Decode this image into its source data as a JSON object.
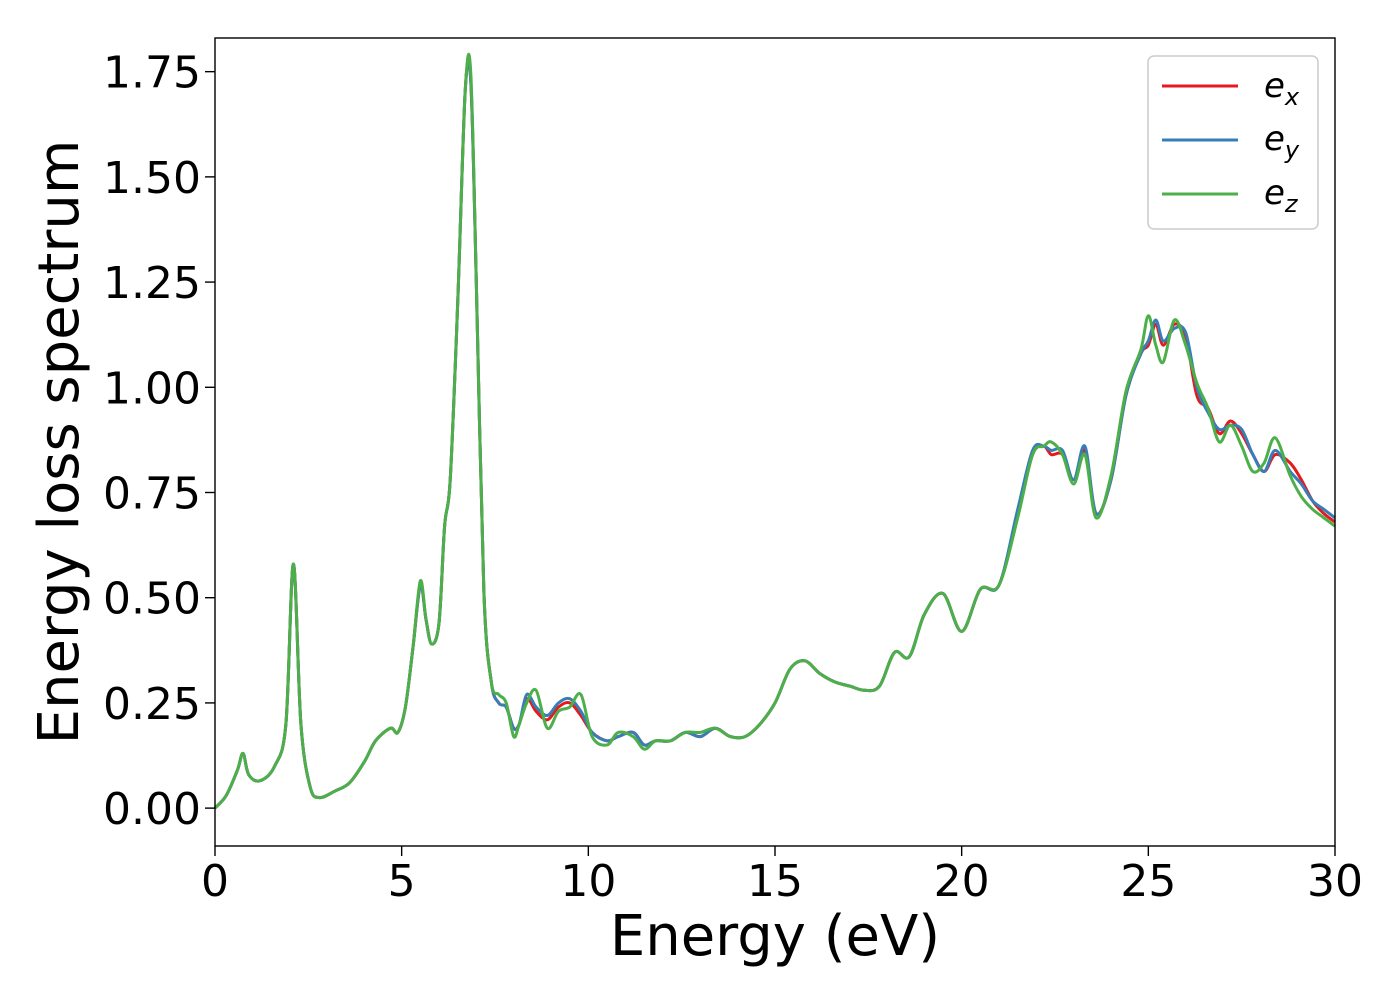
{
  "chart_data": {
    "type": "line",
    "xlabel": "Energy (eV)",
    "ylabel": "Energy loss spectrum",
    "xlim": [
      0,
      30
    ],
    "ylim": [
      -0.09,
      1.83
    ],
    "xticks": [
      0,
      5,
      10,
      15,
      20,
      25,
      30
    ],
    "xtick_labels": [
      "0",
      "5",
      "10",
      "15",
      "20",
      "25",
      "30"
    ],
    "yticks": [
      0.0,
      0.25,
      0.5,
      0.75,
      1.0,
      1.25,
      1.5,
      1.75
    ],
    "ytick_labels": [
      "0.00",
      "0.25",
      "0.50",
      "0.75",
      "1.00",
      "1.25",
      "1.50",
      "1.75"
    ],
    "grid": false,
    "legend_position": "top-right",
    "series": [
      {
        "name": "e_x",
        "legend_base": "e",
        "legend_sub": "x",
        "color": "#e41a1c",
        "x": [
          0,
          0.3,
          0.6,
          0.75,
          0.9,
          1.2,
          1.6,
          1.9,
          2.1,
          2.3,
          2.55,
          2.8,
          3.2,
          3.6,
          4.0,
          4.3,
          4.7,
          4.9,
          5.1,
          5.3,
          5.5,
          5.65,
          5.8,
          6.0,
          6.15,
          6.3,
          6.5,
          6.7,
          6.85,
          7.0,
          7.2,
          7.4,
          7.6,
          7.8,
          8.0,
          8.15,
          8.35,
          8.6,
          8.9,
          9.2,
          9.5,
          9.8,
          10.1,
          10.5,
          10.8,
          11.2,
          11.5,
          11.8,
          12.2,
          12.6,
          13.0,
          13.4,
          13.8,
          14.2,
          14.6,
          15.0,
          15.4,
          15.8,
          16.2,
          16.6,
          17.0,
          17.4,
          17.8,
          18.2,
          18.6,
          19.0,
          19.5,
          20.0,
          20.5,
          21.0,
          21.5,
          21.9,
          22.2,
          22.4,
          22.7,
          23.0,
          23.3,
          23.6,
          24.0,
          24.4,
          24.8,
          25.0,
          25.2,
          25.4,
          25.7,
          26.0,
          26.3,
          26.6,
          26.9,
          27.2,
          27.5,
          27.8,
          28.1,
          28.4,
          28.8,
          29.1,
          29.4,
          29.7,
          30.0
        ],
        "values": [
          0.0,
          0.03,
          0.09,
          0.13,
          0.08,
          0.065,
          0.1,
          0.2,
          0.58,
          0.2,
          0.05,
          0.025,
          0.04,
          0.06,
          0.11,
          0.16,
          0.19,
          0.18,
          0.24,
          0.38,
          0.53,
          0.45,
          0.39,
          0.44,
          0.67,
          0.78,
          1.2,
          1.7,
          1.73,
          1.25,
          0.52,
          0.3,
          0.25,
          0.24,
          0.19,
          0.2,
          0.26,
          0.23,
          0.21,
          0.24,
          0.25,
          0.22,
          0.18,
          0.16,
          0.17,
          0.18,
          0.15,
          0.16,
          0.16,
          0.18,
          0.17,
          0.19,
          0.17,
          0.17,
          0.2,
          0.25,
          0.33,
          0.35,
          0.32,
          0.3,
          0.29,
          0.28,
          0.29,
          0.37,
          0.36,
          0.46,
          0.51,
          0.42,
          0.52,
          0.53,
          0.7,
          0.84,
          0.86,
          0.84,
          0.84,
          0.78,
          0.85,
          0.7,
          0.78,
          0.98,
          1.08,
          1.1,
          1.15,
          1.1,
          1.15,
          1.12,
          0.98,
          0.95,
          0.89,
          0.92,
          0.89,
          0.84,
          0.8,
          0.84,
          0.82,
          0.78,
          0.73,
          0.7,
          0.68
        ]
      },
      {
        "name": "e_y",
        "legend_base": "e",
        "legend_sub": "y",
        "color": "#377eb8",
        "x": [
          0,
          0.3,
          0.6,
          0.75,
          0.9,
          1.2,
          1.6,
          1.9,
          2.1,
          2.3,
          2.55,
          2.8,
          3.2,
          3.6,
          4.0,
          4.3,
          4.7,
          4.9,
          5.1,
          5.3,
          5.5,
          5.65,
          5.8,
          6.0,
          6.15,
          6.3,
          6.5,
          6.7,
          6.85,
          7.0,
          7.2,
          7.4,
          7.6,
          7.8,
          8.0,
          8.15,
          8.35,
          8.6,
          8.9,
          9.2,
          9.5,
          9.8,
          10.1,
          10.5,
          10.8,
          11.2,
          11.5,
          11.8,
          12.2,
          12.6,
          13.0,
          13.4,
          13.8,
          14.2,
          14.6,
          15.0,
          15.4,
          15.8,
          16.2,
          16.6,
          17.0,
          17.4,
          17.8,
          18.2,
          18.6,
          19.0,
          19.5,
          20.0,
          20.5,
          21.0,
          21.5,
          21.9,
          22.2,
          22.4,
          22.7,
          23.0,
          23.3,
          23.6,
          24.0,
          24.4,
          24.8,
          25.0,
          25.2,
          25.4,
          25.7,
          26.0,
          26.3,
          26.6,
          26.9,
          27.2,
          27.5,
          27.8,
          28.1,
          28.4,
          28.8,
          29.1,
          29.4,
          29.7,
          30.0
        ],
        "values": [
          0.0,
          0.03,
          0.09,
          0.13,
          0.08,
          0.065,
          0.1,
          0.2,
          0.58,
          0.2,
          0.05,
          0.025,
          0.04,
          0.06,
          0.11,
          0.16,
          0.19,
          0.18,
          0.24,
          0.38,
          0.53,
          0.45,
          0.39,
          0.44,
          0.67,
          0.78,
          1.2,
          1.7,
          1.73,
          1.25,
          0.52,
          0.3,
          0.25,
          0.24,
          0.19,
          0.2,
          0.27,
          0.24,
          0.22,
          0.25,
          0.26,
          0.23,
          0.18,
          0.16,
          0.17,
          0.18,
          0.15,
          0.16,
          0.16,
          0.18,
          0.17,
          0.19,
          0.17,
          0.17,
          0.2,
          0.25,
          0.33,
          0.35,
          0.32,
          0.3,
          0.29,
          0.28,
          0.29,
          0.37,
          0.36,
          0.46,
          0.51,
          0.42,
          0.52,
          0.53,
          0.71,
          0.85,
          0.86,
          0.85,
          0.85,
          0.78,
          0.86,
          0.7,
          0.78,
          0.98,
          1.08,
          1.11,
          1.16,
          1.11,
          1.14,
          1.13,
          1.0,
          0.94,
          0.9,
          0.91,
          0.9,
          0.84,
          0.8,
          0.85,
          0.8,
          0.77,
          0.73,
          0.71,
          0.69
        ]
      },
      {
        "name": "e_z",
        "legend_base": "e",
        "legend_sub": "z",
        "color": "#4daf4a",
        "x": [
          0,
          0.3,
          0.6,
          0.75,
          0.9,
          1.2,
          1.6,
          1.9,
          2.1,
          2.3,
          2.55,
          2.8,
          3.2,
          3.6,
          4.0,
          4.3,
          4.7,
          4.9,
          5.1,
          5.3,
          5.5,
          5.65,
          5.8,
          6.0,
          6.15,
          6.3,
          6.5,
          6.7,
          6.85,
          7.0,
          7.2,
          7.4,
          7.6,
          7.8,
          8.0,
          8.15,
          8.35,
          8.6,
          8.9,
          9.2,
          9.5,
          9.8,
          10.1,
          10.5,
          10.8,
          11.2,
          11.5,
          11.8,
          12.2,
          12.6,
          13.0,
          13.4,
          13.8,
          14.2,
          14.6,
          15.0,
          15.4,
          15.8,
          16.2,
          16.6,
          17.0,
          17.4,
          17.8,
          18.2,
          18.6,
          19.0,
          19.5,
          20.0,
          20.5,
          21.0,
          21.5,
          21.9,
          22.2,
          22.4,
          22.7,
          23.0,
          23.3,
          23.6,
          24.0,
          24.4,
          24.8,
          25.0,
          25.2,
          25.4,
          25.7,
          26.0,
          26.3,
          26.6,
          26.9,
          27.2,
          27.5,
          27.8,
          28.1,
          28.4,
          28.8,
          29.1,
          29.4,
          29.7,
          30.0
        ],
        "values": [
          0.0,
          0.03,
          0.09,
          0.13,
          0.08,
          0.065,
          0.1,
          0.2,
          0.58,
          0.2,
          0.05,
          0.025,
          0.04,
          0.06,
          0.11,
          0.16,
          0.19,
          0.18,
          0.24,
          0.38,
          0.54,
          0.45,
          0.39,
          0.44,
          0.67,
          0.78,
          1.2,
          1.7,
          1.75,
          1.25,
          0.52,
          0.3,
          0.27,
          0.25,
          0.17,
          0.2,
          0.25,
          0.28,
          0.19,
          0.23,
          0.24,
          0.27,
          0.17,
          0.15,
          0.18,
          0.17,
          0.14,
          0.16,
          0.16,
          0.18,
          0.18,
          0.19,
          0.17,
          0.17,
          0.2,
          0.25,
          0.33,
          0.35,
          0.32,
          0.3,
          0.29,
          0.28,
          0.29,
          0.37,
          0.36,
          0.46,
          0.51,
          0.42,
          0.52,
          0.53,
          0.69,
          0.84,
          0.86,
          0.87,
          0.84,
          0.77,
          0.84,
          0.69,
          0.79,
          0.99,
          1.09,
          1.17,
          1.1,
          1.06,
          1.16,
          1.1,
          1.01,
          0.95,
          0.87,
          0.91,
          0.86,
          0.8,
          0.82,
          0.88,
          0.79,
          0.74,
          0.71,
          0.69,
          0.67
        ]
      }
    ]
  }
}
